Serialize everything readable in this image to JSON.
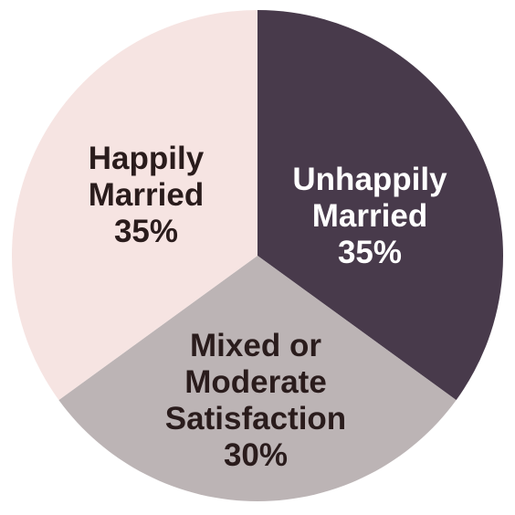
{
  "chart_data": {
    "type": "pie",
    "slices": [
      {
        "label_lines": [
          "Unhappily",
          "Married"
        ],
        "value": 35,
        "value_text": "35%",
        "color": "#483a4b",
        "text_color": "#ffffff"
      },
      {
        "label_lines": [
          "Mixed or",
          "Moderate",
          "Satisfaction"
        ],
        "value": 30,
        "value_text": "30%",
        "color": "#bcb4b5",
        "text_color": "#2a1c1c"
      },
      {
        "label_lines": [
          "Happily",
          "Married"
        ],
        "value": 35,
        "value_text": "35%",
        "color": "#f6e4e2",
        "text_color": "#2a1c1c"
      }
    ]
  }
}
